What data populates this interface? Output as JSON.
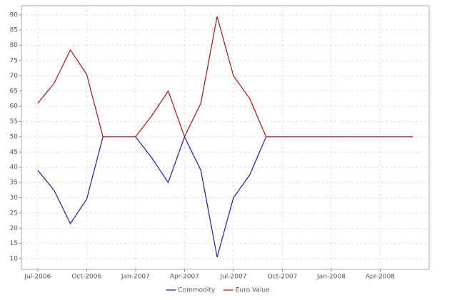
{
  "chart_data": {
    "type": "line",
    "x": [
      "2006-07",
      "2006-08",
      "2006-09",
      "2006-10",
      "2006-11",
      "2006-12",
      "2007-01",
      "2007-02",
      "2007-03",
      "2007-04",
      "2007-05",
      "2007-06",
      "2007-07",
      "2007-08",
      "2007-09",
      "2007-10",
      "2007-11",
      "2007-12",
      "2008-01",
      "2008-02",
      "2008-03",
      "2008-04",
      "2008-05",
      "2008-06"
    ],
    "series": [
      {
        "name": "Commodity",
        "color": "#1c1ca8",
        "values": [
          39,
          32.5,
          21.5,
          29.5,
          50,
          50,
          50,
          43,
          35,
          50,
          39,
          10.5,
          30,
          37.5,
          50,
          50,
          50,
          50,
          50,
          50,
          50,
          50,
          50,
          50
        ]
      },
      {
        "name": "Euro Value",
        "color": "#a31515",
        "values": [
          61,
          67.5,
          78.5,
          70.5,
          50,
          50,
          50,
          57,
          65,
          50,
          61,
          89.5,
          70,
          62.5,
          50,
          50,
          50,
          50,
          50,
          50,
          50,
          50,
          50,
          50
        ]
      }
    ],
    "xlim": [
      "2006-06",
      "2008-07"
    ],
    "xticks": [
      {
        "value": "2006-07",
        "label": "Jul-2006"
      },
      {
        "value": "2006-10",
        "label": "Oct-2006"
      },
      {
        "value": "2007-01",
        "label": "Jan-2007"
      },
      {
        "value": "2007-04",
        "label": "Apr-2007"
      },
      {
        "value": "2007-07",
        "label": "Jul-2007"
      },
      {
        "value": "2007-10",
        "label": "Oct-2007"
      },
      {
        "value": "2008-01",
        "label": "Jan-2008"
      },
      {
        "value": "2008-04",
        "label": "Apr-2008"
      }
    ],
    "ylim": [
      6.5,
      93
    ],
    "yticks": [
      10,
      15,
      20,
      25,
      30,
      35,
      40,
      45,
      50,
      55,
      60,
      65,
      70,
      75,
      80,
      85,
      90
    ],
    "grid": true,
    "legend": "bottom"
  }
}
